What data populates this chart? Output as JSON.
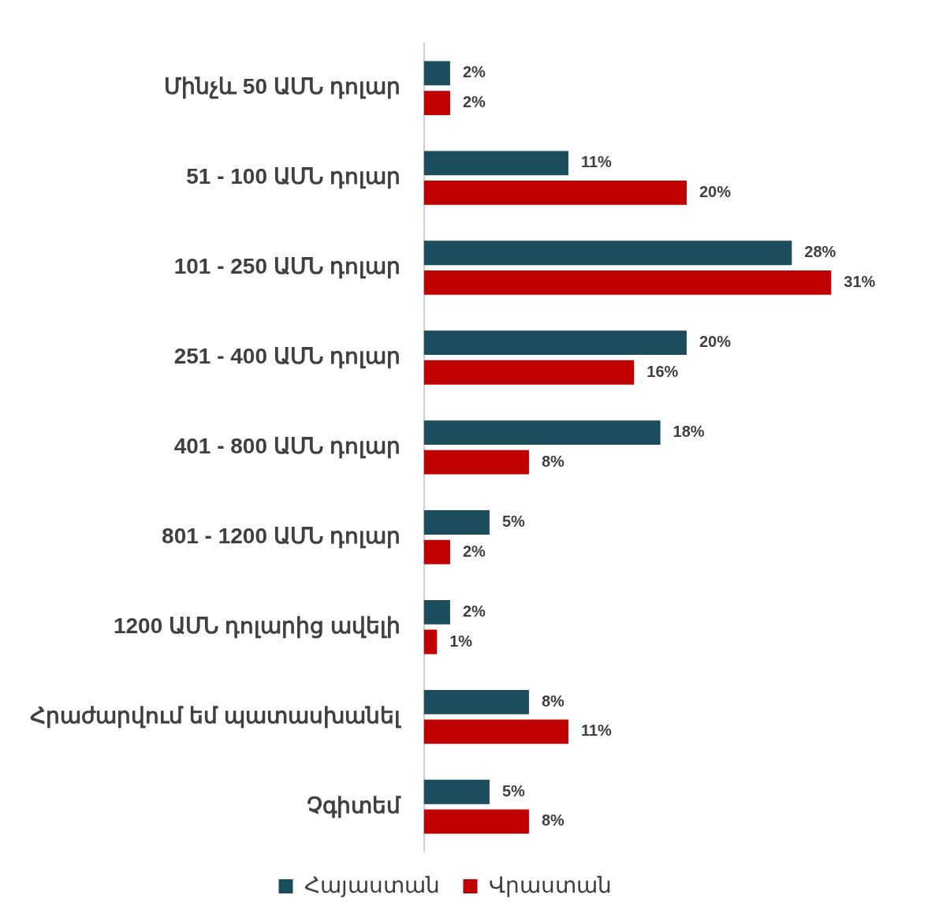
{
  "chart_data": {
    "type": "bar",
    "orientation": "horizontal",
    "legend": "bottom",
    "tick_labels": "y",
    "categories": [
      "Մինչև 50 ԱՄՆ դոլար",
      "51 - 100 ԱՄՆ դոլար",
      "101 - 250 ԱՄՆ դոլար",
      "251 - 400 ԱՄՆ դոլար",
      "401 - 800 ԱՄՆ դոլար",
      "801 - 1200 ԱՄՆ դոլար",
      "1200 ԱՄՆ դոլարից ավելի",
      "Հրաժարվում եմ պատասխանել",
      "Չգիտեմ"
    ],
    "series": [
      {
        "name": "Հայաստան",
        "color": "#1b4d5c",
        "values": [
          2,
          11,
          28,
          20,
          18,
          5,
          2,
          8,
          5
        ],
        "value_labels": [
          "2%",
          "11%",
          "28%",
          "20%",
          "18%",
          "5%",
          "2%",
          "8%",
          "5%"
        ]
      },
      {
        "name": "Վրաստան",
        "color": "#c00000",
        "values": [
          2,
          20,
          31,
          16,
          8,
          2,
          1,
          11,
          8
        ],
        "value_labels": [
          "2%",
          "20%",
          "31%",
          "16%",
          "8%",
          "2%",
          "1%",
          "11%",
          "8%"
        ]
      }
    ]
  }
}
